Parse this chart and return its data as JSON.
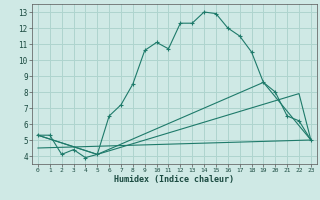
{
  "xlabel": "Humidex (Indice chaleur)",
  "xlim": [
    -0.5,
    23.5
  ],
  "ylim": [
    3.5,
    13.5
  ],
  "xticks": [
    0,
    1,
    2,
    3,
    4,
    5,
    6,
    7,
    8,
    9,
    10,
    11,
    12,
    13,
    14,
    15,
    16,
    17,
    18,
    19,
    20,
    21,
    22,
    23
  ],
  "yticks": [
    4,
    5,
    6,
    7,
    8,
    9,
    10,
    11,
    12,
    13
  ],
  "bg_color": "#cfe9e5",
  "grid_color": "#aed4ce",
  "line_color": "#1e7a6a",
  "curve1_x": [
    0,
    1,
    2,
    3,
    4,
    5,
    6,
    7,
    8,
    9,
    10,
    11,
    12,
    13,
    14,
    15,
    16,
    17,
    18,
    19,
    20,
    21,
    22,
    23
  ],
  "curve1_y": [
    5.3,
    5.3,
    4.1,
    4.4,
    3.9,
    4.1,
    6.5,
    7.2,
    8.5,
    10.6,
    11.1,
    10.7,
    12.3,
    12.3,
    13.0,
    12.9,
    12.0,
    11.5,
    10.5,
    8.6,
    8.0,
    6.5,
    6.2,
    5.0
  ],
  "curve2_x": [
    0,
    5,
    22,
    23
  ],
  "curve2_y": [
    5.3,
    4.1,
    7.9,
    5.0
  ],
  "curve3_x": [
    0,
    5,
    19,
    23
  ],
  "curve3_y": [
    5.3,
    4.1,
    8.6,
    5.0
  ],
  "curve4_x": [
    0,
    23
  ],
  "curve4_y": [
    4.5,
    5.0
  ]
}
